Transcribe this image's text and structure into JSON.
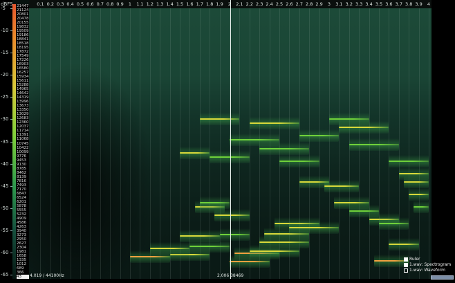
{
  "dbfs_scale": {
    "title": "dBFS",
    "ticks": [
      "-5",
      "-10",
      "-15",
      "-20",
      "-25",
      "-30",
      "-35",
      "-40",
      "-45",
      "-50",
      "-55",
      "-60",
      "-65"
    ]
  },
  "frequency_labels": [
    "21447",
    "21124",
    "20801",
    "20478",
    "20155",
    "19832",
    "19509",
    "19186",
    "18841",
    "18518",
    "18195",
    "17872",
    "17549",
    "17226",
    "16903",
    "16580",
    "16257",
    "15934",
    "15611",
    "15288",
    "14965",
    "14642",
    "14319",
    "13996",
    "13673",
    "13350",
    "13029",
    "12683",
    "12360",
    "12037",
    "11714",
    "11391",
    "11068",
    "10745",
    "10422",
    "10099",
    "9776",
    "9453",
    "9130",
    "8785",
    "8462",
    "8139",
    "7816",
    "7493",
    "7170",
    "6847",
    "6524",
    "6201",
    "5878",
    "5555",
    "5232",
    "4909",
    "4586",
    "4263",
    "3940",
    "3273",
    "2950",
    "2627",
    "2304",
    "1981",
    "1658",
    "1335",
    "1012",
    "689",
    "366",
    "43"
  ],
  "selected_frequency": "43",
  "time_labels": [
    "0.1",
    "0.2",
    "0.3",
    "0.4",
    "0.5",
    "0.6",
    "0.7",
    "0.8",
    "0.9",
    "1",
    "1.1",
    "1.2",
    "1.3",
    "1.4",
    "1.5",
    "1.6",
    "1.7",
    "1.8",
    "1.9",
    "2",
    "2.1",
    "2.2",
    "2.3",
    "2.4",
    "2.5",
    "2.6",
    "2.7",
    "2.8",
    "2.9",
    "3",
    "3.1",
    "3.2",
    "3.3",
    "3.4",
    "3.5",
    "3.6",
    "3.7",
    "3.8",
    "3.9",
    "4"
  ],
  "status": {
    "left_readout": "4.019 / 44100Hz",
    "cursor_readout": "2.006 38469"
  },
  "legend": [
    {
      "label": "Ruler",
      "checked": true
    },
    {
      "label": "1.wav: Spectrogram",
      "checked": true
    },
    {
      "label": "1.wav: Waveform",
      "checked": false
    }
  ],
  "playhead_time": 2.006,
  "colors": {
    "background": "#07120f",
    "harmonic_hot": "#f0a040",
    "harmonic_warm": "#d8d83a",
    "harmonic_cool": "#6fd03a",
    "playhead": "#e8f0ec"
  },
  "harmonics": [
    {
      "t0": 1.0,
      "t1": 1.4,
      "f": 1658,
      "level": "hot"
    },
    {
      "t0": 1.4,
      "t1": 1.8,
      "f": 1835,
      "level": "warm"
    },
    {
      "t0": 1.2,
      "t1": 1.6,
      "f": 2304,
      "level": "warm"
    },
    {
      "t0": 1.6,
      "t1": 2.0,
      "f": 2450,
      "level": "cool"
    },
    {
      "t0": 1.5,
      "t1": 1.9,
      "f": 3273,
      "level": "warm"
    },
    {
      "t0": 1.9,
      "t1": 2.2,
      "f": 3500,
      "level": "cool"
    },
    {
      "t0": 1.65,
      "t1": 1.95,
      "f": 5878,
      "level": "warm"
    },
    {
      "t0": 1.85,
      "t1": 2.2,
      "f": 5232,
      "level": "warm"
    },
    {
      "t0": 1.7,
      "t1": 2.0,
      "f": 6201,
      "level": "cool"
    },
    {
      "t0": 1.5,
      "t1": 1.8,
      "f": 10099,
      "level": "warm"
    },
    {
      "t0": 1.8,
      "t1": 2.2,
      "f": 9776,
      "level": "cool"
    },
    {
      "t0": 1.7,
      "t1": 2.1,
      "f": 12683,
      "level": "warm"
    },
    {
      "t0": 2.0,
      "t1": 2.4,
      "f": 1300,
      "level": "hot"
    },
    {
      "t0": 2.05,
      "t1": 2.5,
      "f": 1900,
      "level": "hot"
    },
    {
      "t0": 2.2,
      "t1": 2.7,
      "f": 2100,
      "level": "warm"
    },
    {
      "t0": 2.3,
      "t1": 2.8,
      "f": 2800,
      "level": "warm"
    },
    {
      "t0": 2.35,
      "t1": 2.8,
      "f": 3640,
      "level": "warm"
    },
    {
      "t0": 2.45,
      "t1": 2.9,
      "f": 4586,
      "level": "warm"
    },
    {
      "t0": 2.6,
      "t1": 3.1,
      "f": 4263,
      "level": "warm"
    },
    {
      "t0": 2.0,
      "t1": 2.5,
      "f": 11068,
      "level": "cool"
    },
    {
      "t0": 2.5,
      "t1": 2.9,
      "f": 9453,
      "level": "cool"
    },
    {
      "t0": 2.2,
      "t1": 2.7,
      "f": 12360,
      "level": "warm"
    },
    {
      "t0": 2.7,
      "t1": 3.1,
      "f": 11391,
      "level": "cool"
    },
    {
      "t0": 2.3,
      "t1": 2.8,
      "f": 10422,
      "level": "cool"
    },
    {
      "t0": 2.7,
      "t1": 3.0,
      "f": 7816,
      "level": "warm"
    },
    {
      "t0": 2.95,
      "t1": 3.3,
      "f": 7493,
      "level": "warm"
    },
    {
      "t0": 3.05,
      "t1": 3.4,
      "f": 6201,
      "level": "warm"
    },
    {
      "t0": 3.2,
      "t1": 3.5,
      "f": 5555,
      "level": "cool"
    },
    {
      "t0": 3.0,
      "t1": 3.4,
      "f": 12683,
      "level": "cool"
    },
    {
      "t0": 3.1,
      "t1": 3.6,
      "f": 12037,
      "level": "warm"
    },
    {
      "t0": 3.2,
      "t1": 3.7,
      "f": 10745,
      "level": "cool"
    },
    {
      "t0": 3.4,
      "t1": 3.7,
      "f": 4909,
      "level": "warm"
    },
    {
      "t0": 3.5,
      "t1": 3.8,
      "f": 4586,
      "level": "cool"
    },
    {
      "t0": 3.45,
      "t1": 3.8,
      "f": 1335,
      "level": "hot"
    },
    {
      "t0": 3.6,
      "t1": 3.9,
      "f": 2627,
      "level": "warm"
    },
    {
      "t0": 3.7,
      "t1": 4.0,
      "f": 8462,
      "level": "warm"
    },
    {
      "t0": 3.75,
      "t1": 4.0,
      "f": 7816,
      "level": "warm"
    },
    {
      "t0": 3.6,
      "t1": 4.0,
      "f": 9453,
      "level": "cool"
    },
    {
      "t0": 3.8,
      "t1": 4.0,
      "f": 6847,
      "level": "warm"
    },
    {
      "t0": 3.85,
      "t1": 4.0,
      "f": 5878,
      "level": "cool"
    }
  ]
}
